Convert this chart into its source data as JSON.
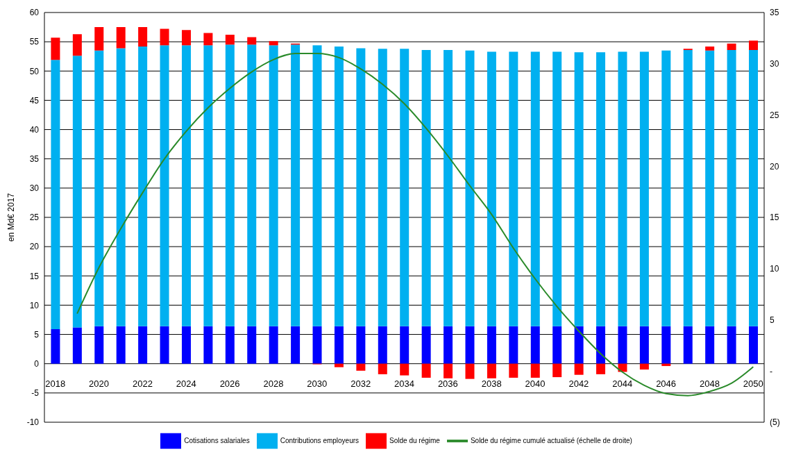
{
  "chart_data": {
    "type": "bar",
    "stacked": true,
    "ylabel": "en Md€ 2017",
    "categories": [
      "2018",
      null,
      "2020",
      null,
      "2022",
      null,
      "2024",
      null,
      "2026",
      null,
      "2028",
      null,
      "2030",
      null,
      "2032",
      null,
      "2034",
      null,
      "2036",
      null,
      "2038",
      null,
      "2040",
      null,
      "2042",
      null,
      "2044",
      null,
      "2046",
      null,
      "2048",
      null,
      "2050"
    ],
    "series": [
      {
        "name": "Cotisations salariales",
        "color": "#0000ff",
        "values": [
          5.9,
          6.2,
          6.4,
          6.4,
          6.4,
          6.4,
          6.4,
          6.4,
          6.4,
          6.4,
          6.4,
          6.4,
          6.4,
          6.4,
          6.4,
          6.4,
          6.4,
          6.4,
          6.4,
          6.4,
          6.4,
          6.4,
          6.4,
          6.4,
          6.4,
          6.4,
          6.4,
          6.4,
          6.4,
          6.4,
          6.4,
          6.4,
          6.4
        ]
      },
      {
        "name": "Contributions employeurs",
        "color": "#00b0f0",
        "values": [
          46.0,
          46.4,
          47.1,
          47.5,
          47.8,
          48.0,
          48.0,
          48.0,
          48.1,
          48.1,
          48.0,
          48.1,
          48.0,
          47.8,
          47.5,
          47.4,
          47.4,
          47.2,
          47.2,
          47.1,
          46.9,
          46.9,
          46.9,
          46.9,
          46.8,
          46.8,
          46.9,
          46.9,
          47.1,
          47.2,
          47.1,
          47.2,
          47.2
        ]
      },
      {
        "name": "Solde du régime",
        "color": "#ff0000",
        "values": [
          3.8,
          3.7,
          4.0,
          3.6,
          3.3,
          2.8,
          2.6,
          2.1,
          1.7,
          1.3,
          0.7,
          0.2,
          -0.1,
          -0.6,
          -1.2,
          -1.8,
          -2.0,
          -2.4,
          -2.5,
          -2.6,
          -2.5,
          -2.4,
          -2.4,
          -2.3,
          -1.9,
          -1.8,
          -1.4,
          -1.0,
          -0.4,
          0.2,
          0.7,
          1.1,
          1.6
        ]
      },
      {
        "name": "Solde du régime cumulé actualisé (échelle de droite)",
        "type": "line",
        "axis": "y2",
        "color": "#2a8a2a",
        "values": [
          null,
          5.6,
          10.1,
          13.9,
          17.4,
          20.7,
          23.4,
          25.7,
          27.6,
          29.2,
          30.4,
          31.0,
          31.0,
          30.6,
          29.5,
          28.0,
          26.1,
          23.7,
          21.0,
          18.1,
          15.3,
          12.0,
          9.0,
          6.3,
          3.9,
          1.7,
          -0.1,
          -1.4,
          -2.2,
          -2.4,
          -2.0,
          -1.2,
          0.4
        ]
      }
    ],
    "ylim": [
      -10,
      60
    ],
    "yticks": [
      -10,
      -5,
      0,
      5,
      10,
      15,
      20,
      25,
      30,
      35,
      40,
      45,
      50,
      55,
      60
    ],
    "y2lim": [
      -5,
      35
    ],
    "y2ticks": [
      {
        "value": -5,
        "label": "(5)"
      },
      {
        "value": 0,
        "label": "-"
      },
      5,
      10,
      15,
      20,
      25,
      30,
      35
    ],
    "grid": "y",
    "legend": "bottom",
    "marker": "none"
  }
}
